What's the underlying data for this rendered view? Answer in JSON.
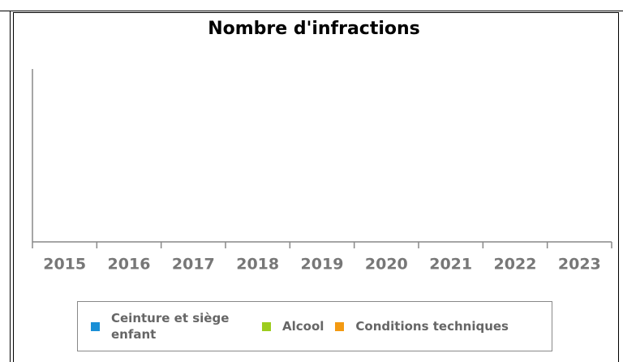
{
  "chart_data": {
    "type": "bar",
    "title": "Nombre d'infractions",
    "categories": [
      "2015",
      "2016",
      "2017",
      "2018",
      "2019",
      "2020",
      "2021",
      "2022",
      "2023"
    ],
    "series": [
      {
        "name": "Ceinture et siège enfant",
        "color": "#1a8fd6",
        "values": [
          null,
          null,
          null,
          null,
          null,
          null,
          null,
          null,
          null
        ]
      },
      {
        "name": "Alcool",
        "color": "#9ccc1e",
        "values": [
          null,
          null,
          null,
          null,
          null,
          null,
          null,
          null,
          null
        ]
      },
      {
        "name": "Conditions techniques",
        "color": "#f39a12",
        "values": [
          null,
          null,
          null,
          null,
          null,
          null,
          null,
          null,
          null
        ]
      }
    ],
    "legend": "bottom"
  }
}
